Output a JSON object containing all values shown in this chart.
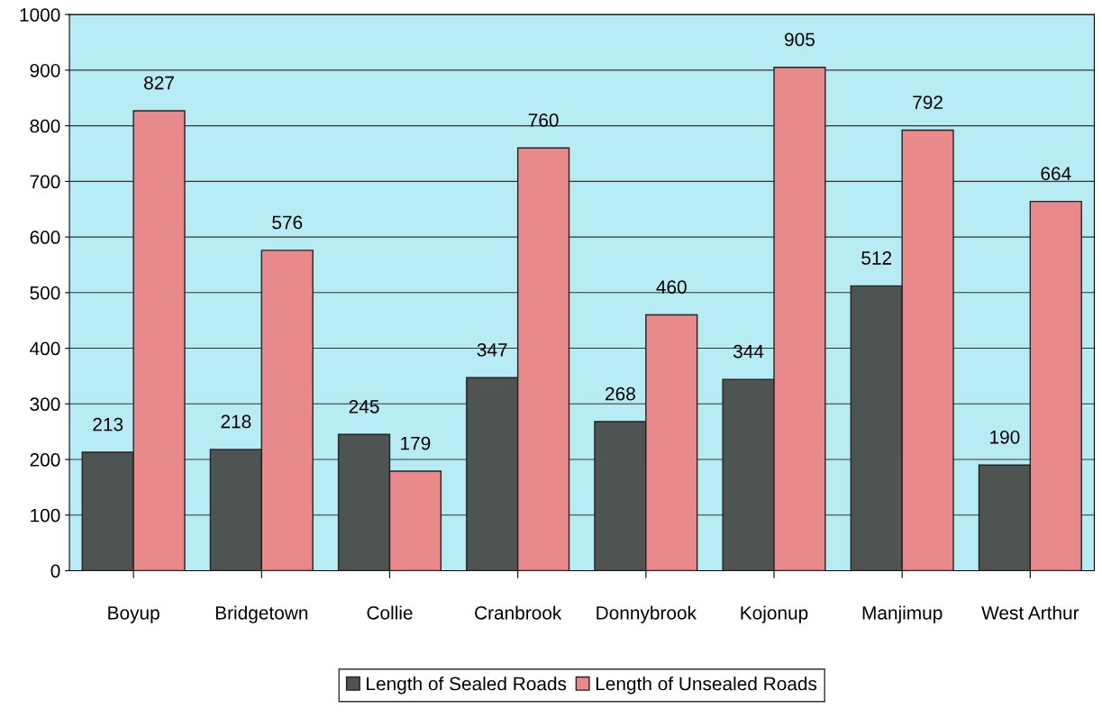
{
  "chart_data": {
    "type": "bar",
    "categories": [
      "Boyup",
      "Bridgetown",
      "Collie",
      "Cranbrook",
      "Donnybrook",
      "Kojonup",
      "Manjimup",
      "West Arthur"
    ],
    "series": [
      {
        "name": "Length of Sealed Roads",
        "color": "#4f5352",
        "values": [
          213,
          218,
          245,
          347,
          268,
          344,
          512,
          190
        ]
      },
      {
        "name": "Length of Unsealed Roads",
        "color": "#e8898c",
        "values": [
          827,
          576,
          179,
          760,
          460,
          905,
          792,
          664
        ]
      }
    ],
    "ylim": [
      0,
      1000
    ],
    "yticks": [
      0,
      100,
      200,
      300,
      400,
      500,
      600,
      700,
      800,
      900,
      1000
    ],
    "grid": "y",
    "legend": "bottom",
    "data_labels": true
  }
}
